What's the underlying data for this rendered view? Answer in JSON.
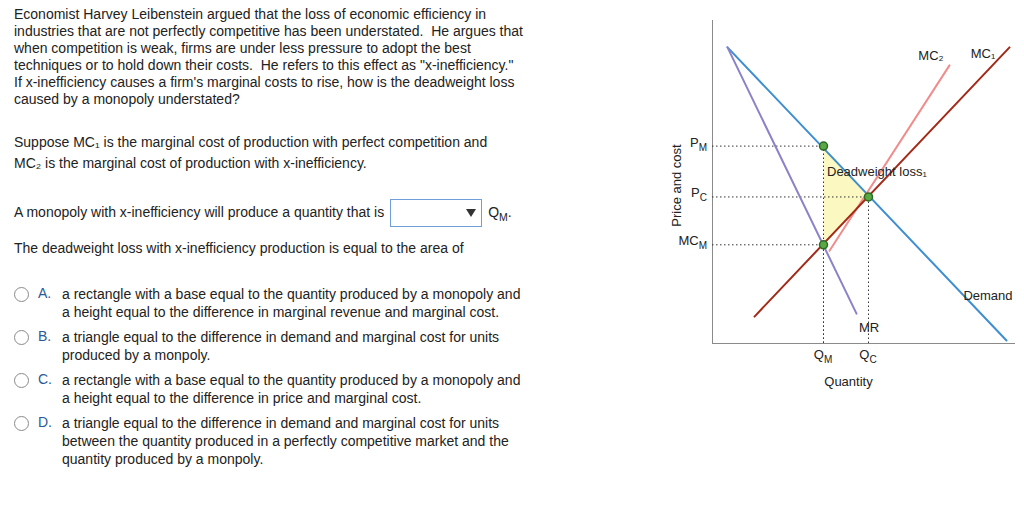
{
  "question": {
    "intro": [
      "Economist Harvey Leibenstein argued that the loss of economic efficiency in",
      "industries that are not perfectly competitive has been understated.  He argues that",
      "when competition is weak, firms are under less pressure to adopt the best",
      "techniques or to hold down their costs.  He refers to this effect as \"x-inefficiency.\"",
      "If x-inefficiency causes a firm's marginal costs to rise, how is the deadweight loss",
      "caused by a monopoly understated?"
    ],
    "setup": [
      "Suppose MC₁ is the marginal cost of production with perfect competition and",
      "MC₂ is the marginal cost of production with x-inefficiency."
    ],
    "prompt1": {
      "before": "A monopoly with x-inefficiency will produce a quantity that is",
      "after": {
        "text": "Q",
        "sub": "M",
        "tail": "."
      }
    },
    "prompt2": "The deadweight loss with x-inefficiency production is equal to the area of",
    "options": [
      {
        "letter": "A.",
        "lines": [
          "a rectangle with a base equal to the quantity produced by a monopoly and",
          "a height equal to the difference in marginal revenue and marginal cost."
        ]
      },
      {
        "letter": "B.",
        "lines": [
          "a triangle equal to the difference in demand and marginal cost for units",
          "produced by a monpoly."
        ]
      },
      {
        "letter": "C.",
        "lines": [
          "a rectangle with a base equal to the quantity produced by a monopoly and",
          "a height equal to the difference in price and marginal cost."
        ]
      },
      {
        "letter": "D.",
        "lines": [
          "a triangle equal to the difference in demand and marginal cost for units",
          "between the quantity produced in a perfectly competitive market and the",
          "quantity produced by a monpoly."
        ]
      }
    ]
  },
  "chart_data": {
    "type": "line",
    "x_label": "Quantity",
    "y_label": "Price and cost",
    "xlim": [
      0,
      101
    ],
    "ylim": [
      0,
      108
    ],
    "tick_labels": false,
    "series": [
      {
        "name": "Demand",
        "color": "#3d8fd1",
        "x": [
          5,
          98
        ],
        "values": [
          99,
          1
        ]
      },
      {
        "name": "MR",
        "color": "#8b83c9",
        "x": [
          5,
          48
        ],
        "values": [
          99,
          10
        ]
      },
      {
        "name": "MC₂",
        "color": "#f08c8c",
        "x": [
          39,
          79
        ],
        "values": [
          31,
          93
        ]
      },
      {
        "name": "MC₁",
        "color": "#a32a18",
        "x": [
          14,
          99
        ],
        "values": [
          9,
          99
        ]
      }
    ],
    "points": [
      {
        "x": 37,
        "y": 66,
        "x_label": {
          "text": "Q",
          "sub": "M"
        },
        "y_label": {
          "text": "P",
          "sub": "M"
        }
      },
      {
        "x": 52,
        "y": 49,
        "x_label": {
          "text": "Q",
          "sub": "C"
        },
        "y_label": {
          "text": "P",
          "sub": "C"
        }
      },
      {
        "x": 37,
        "y": 33,
        "y_label": {
          "text": "MC",
          "sub": "M"
        }
      }
    ],
    "annotations": [
      {
        "text": "Deadweight loss₁"
      }
    ]
  }
}
